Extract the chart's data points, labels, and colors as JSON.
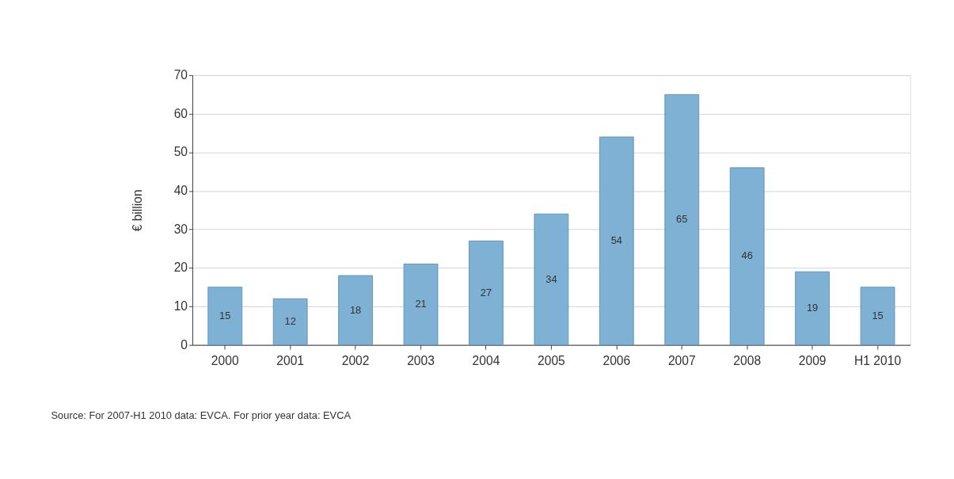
{
  "chart_data": {
    "type": "bar",
    "ylabel": "€ billion",
    "categories": [
      "2000",
      "2001",
      "2002",
      "2003",
      "2004",
      "2005",
      "2006",
      "2007",
      "2008",
      "2009",
      "H1 2010"
    ],
    "values": [
      15,
      12,
      18,
      21,
      27,
      34,
      54,
      65,
      46,
      19,
      15
    ],
    "color": "#7eb1d3",
    "ylim": [
      0,
      70
    ],
    "yticks": [
      0,
      10,
      20,
      30,
      40,
      50,
      60,
      70
    ],
    "grid": "y",
    "data_labels": true,
    "annotations": [
      "Source: For 2007-H1 2010 data: EVCA. For prior year data: EVCA"
    ]
  }
}
